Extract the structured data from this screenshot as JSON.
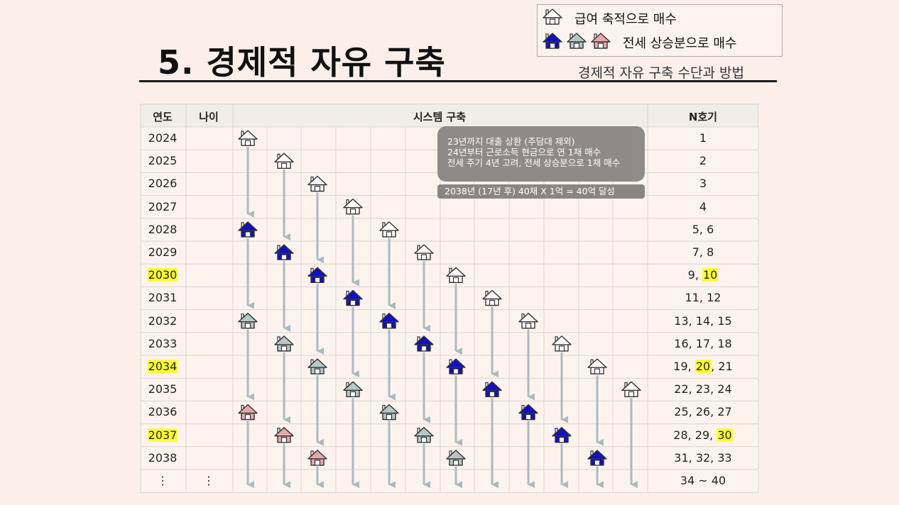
{
  "title": "5. 경제적 자유 구축",
  "subtitle": "경제적 자유 구축 수단과 방법",
  "legend": {
    "row1_text": "급여 축적으로 매수",
    "row2_text": "전세 상승분으로 매수"
  },
  "headers": {
    "year": "연도",
    "age": "나이",
    "system": "시스템 구축",
    "n": "N호기"
  },
  "rows": [
    {
      "year": "2024",
      "n": "1",
      "hl": false
    },
    {
      "year": "2025",
      "n": "2",
      "hl": false
    },
    {
      "year": "2026",
      "n": "3",
      "hl": false
    },
    {
      "year": "2027",
      "n": "4",
      "hl": false
    },
    {
      "year": "2028",
      "n": "5, 6",
      "hl": false
    },
    {
      "year": "2029",
      "n": "7, 8",
      "hl": false
    },
    {
      "year": "2030",
      "n_pre": "9, ",
      "n_hl": "10",
      "n_post": "",
      "hl": true
    },
    {
      "year": "2031",
      "n": "11, 12",
      "hl": false
    },
    {
      "year": "2032",
      "n": "13, 14, 15",
      "hl": false
    },
    {
      "year": "2033",
      "n": "16, 17, 18",
      "hl": false
    },
    {
      "year": "2034",
      "n_pre": "19, ",
      "n_hl": "20",
      "n_post": ", 21",
      "hl": true
    },
    {
      "year": "2035",
      "n": "22, 23, 24",
      "hl": false
    },
    {
      "year": "2036",
      "n": "25, 26, 27",
      "hl": false
    },
    {
      "year": "2037",
      "n_pre": "28, 29, ",
      "n_hl": "30",
      "n_post": "",
      "hl": true
    },
    {
      "year": "2038",
      "n": "31, 32, 33",
      "hl": false
    },
    {
      "year": "⋮",
      "age": "⋮",
      "n": "34 ~ 40",
      "hl": false
    }
  ],
  "notes": {
    "line1": "23년까지 대출 상환 (주담대 제외)",
    "line2": "24년부터 근로소득 현금으로 연 1채 매수",
    "line3": "전세 주기 4년 고려, 전세 상승분으로 1채 매수",
    "bar": "2038년 (17년  후) 40채 X 1억 = 40억 달성"
  },
  "colors": {
    "white_house": "#ffffff",
    "blue_house": "#1010c8",
    "gray_house": "#b4c8c8",
    "pink_house": "#e8a8a8",
    "arrow": "#a8bcc0",
    "highlight": "#ffff30"
  },
  "houses": [
    {
      "col": 0,
      "row": 0,
      "type": "white"
    },
    {
      "col": 0,
      "row": 4,
      "type": "blue"
    },
    {
      "col": 0,
      "row": 8,
      "type": "gray"
    },
    {
      "col": 0,
      "row": 12,
      "type": "pink"
    },
    {
      "col": 1,
      "row": 1,
      "type": "white"
    },
    {
      "col": 1,
      "row": 5,
      "type": "blue"
    },
    {
      "col": 1,
      "row": 9,
      "type": "gray"
    },
    {
      "col": 1,
      "row": 13,
      "type": "pink"
    },
    {
      "col": 2,
      "row": 2,
      "type": "white"
    },
    {
      "col": 2,
      "row": 6,
      "type": "blue"
    },
    {
      "col": 2,
      "row": 10,
      "type": "gray"
    },
    {
      "col": 2,
      "row": 14,
      "type": "pink"
    },
    {
      "col": 3,
      "row": 3,
      "type": "white"
    },
    {
      "col": 3,
      "row": 7,
      "type": "blue"
    },
    {
      "col": 3,
      "row": 11,
      "type": "gray"
    },
    {
      "col": 4,
      "row": 4,
      "type": "white"
    },
    {
      "col": 4,
      "row": 8,
      "type": "blue"
    },
    {
      "col": 4,
      "row": 12,
      "type": "gray"
    },
    {
      "col": 5,
      "row": 5,
      "type": "white"
    },
    {
      "col": 5,
      "row": 9,
      "type": "blue"
    },
    {
      "col": 5,
      "row": 13,
      "type": "gray"
    },
    {
      "col": 6,
      "row": 6,
      "type": "white"
    },
    {
      "col": 6,
      "row": 10,
      "type": "blue"
    },
    {
      "col": 6,
      "row": 14,
      "type": "gray"
    },
    {
      "col": 7,
      "row": 7,
      "type": "white"
    },
    {
      "col": 7,
      "row": 11,
      "type": "blue"
    },
    {
      "col": 8,
      "row": 8,
      "type": "white"
    },
    {
      "col": 8,
      "row": 12,
      "type": "blue"
    },
    {
      "col": 9,
      "row": 9,
      "type": "white"
    },
    {
      "col": 9,
      "row": 13,
      "type": "blue"
    },
    {
      "col": 10,
      "row": 10,
      "type": "white"
    },
    {
      "col": 10,
      "row": 14,
      "type": "blue"
    },
    {
      "col": 11,
      "row": 11,
      "type": "white"
    }
  ]
}
